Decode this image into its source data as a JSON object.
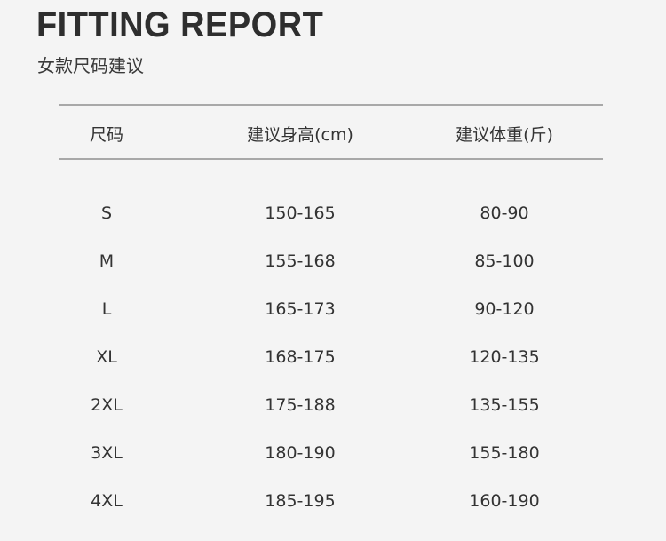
{
  "title": "FITTING REPORT",
  "subtitle": "女款尺码建议",
  "table": {
    "headers": [
      "尺码",
      "建议身高(cm)",
      "建议体重(斤)"
    ],
    "rows": [
      [
        "S",
        "150-165",
        "80-90"
      ],
      [
        "M",
        "155-168",
        "85-100"
      ],
      [
        "L",
        "165-173",
        "90-120"
      ],
      [
        "XL",
        "168-175",
        "120-135"
      ],
      [
        "2XL",
        "175-188",
        "135-155"
      ],
      [
        "3XL",
        "180-190",
        "155-180"
      ],
      [
        "4XL",
        "185-195",
        "160-190"
      ]
    ]
  }
}
